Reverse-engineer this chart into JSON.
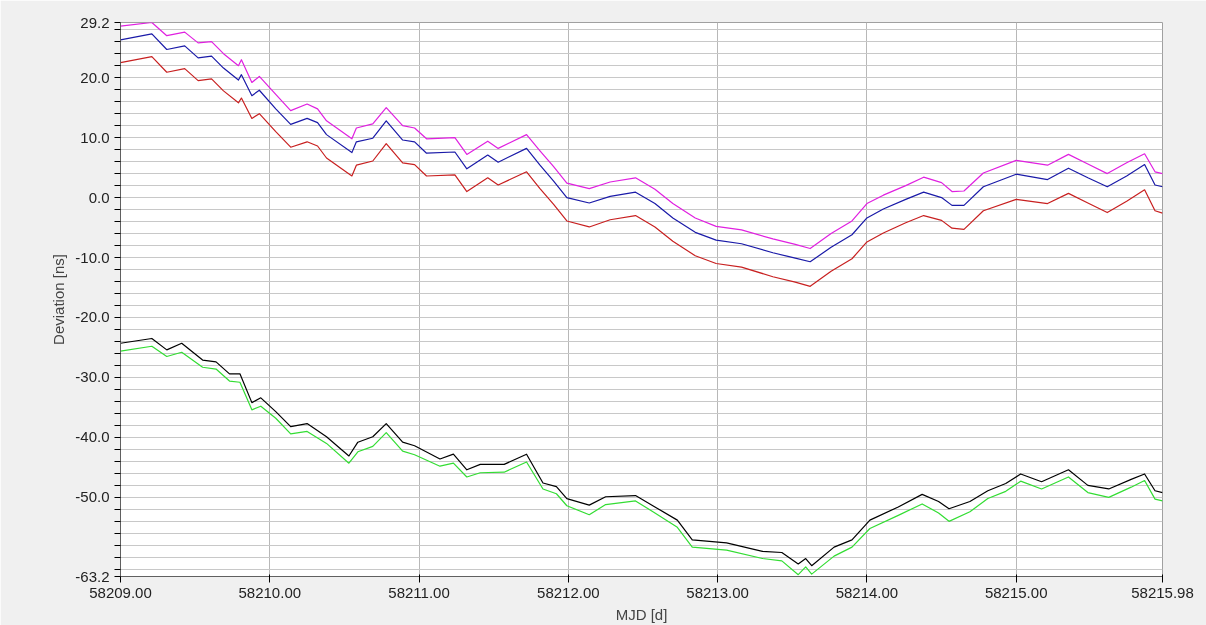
{
  "chart_data": {
    "type": "line",
    "xlabel": "MJD [d]",
    "ylabel": "Deviation [ns]",
    "xlim": [
      58209.0,
      58215.98
    ],
    "ylim": [
      -63.2,
      29.2
    ],
    "xticks": [
      {
        "value": 58209,
        "label": "58209.00"
      },
      {
        "value": 58210,
        "label": "58210.00"
      },
      {
        "value": 58211,
        "label": "58211.00"
      },
      {
        "value": 58212,
        "label": "58212.00"
      },
      {
        "value": 58213,
        "label": "58213.00"
      },
      {
        "value": 58214,
        "label": "58214.00"
      },
      {
        "value": 58215,
        "label": "58215.00"
      },
      {
        "value": 58215.98,
        "label": "58215.98"
      }
    ],
    "yticks": [
      29.2,
      {
        "value": 28,
        "label": null
      },
      {
        "value": 26,
        "label": null
      },
      {
        "value": 24,
        "label": null
      },
      {
        "value": 22,
        "label": null
      },
      {
        "value": 20,
        "label": "20.0"
      },
      {
        "value": 18,
        "label": null
      },
      {
        "value": 16,
        "label": null
      },
      {
        "value": 14,
        "label": null
      },
      {
        "value": 12,
        "label": null
      },
      {
        "value": 10,
        "label": "10.0"
      },
      {
        "value": 8,
        "label": null
      },
      {
        "value": 6,
        "label": null
      },
      {
        "value": 4,
        "label": null
      },
      {
        "value": 2,
        "label": null
      },
      {
        "value": 0,
        "label": "0.0"
      },
      {
        "value": -2,
        "label": null
      },
      {
        "value": -4,
        "label": null
      },
      {
        "value": -6,
        "label": null
      },
      {
        "value": -8,
        "label": null
      },
      {
        "value": -10,
        "label": "-10.0"
      },
      {
        "value": -12,
        "label": null
      },
      {
        "value": -14,
        "label": null
      },
      {
        "value": -16,
        "label": null
      },
      {
        "value": -18,
        "label": null
      },
      {
        "value": -20,
        "label": "-20.0"
      },
      {
        "value": -22,
        "label": null
      },
      {
        "value": -24,
        "label": null
      },
      {
        "value": -26,
        "label": null
      },
      {
        "value": -28,
        "label": null
      },
      {
        "value": -30,
        "label": "-30.0"
      },
      {
        "value": -32,
        "label": null
      },
      {
        "value": -34,
        "label": null
      },
      {
        "value": -36,
        "label": null
      },
      {
        "value": -38,
        "label": null
      },
      {
        "value": -40,
        "label": "-40.0"
      },
      {
        "value": -42,
        "label": null
      },
      {
        "value": -44,
        "label": null
      },
      {
        "value": -46,
        "label": null
      },
      {
        "value": -48,
        "label": null
      },
      {
        "value": -50,
        "label": "-50.0"
      },
      {
        "value": -52,
        "label": null
      },
      {
        "value": -54,
        "label": null
      },
      {
        "value": -56,
        "label": null
      },
      {
        "value": -58,
        "label": null
      },
      {
        "value": -60,
        "label": null
      },
      {
        "value": -62,
        "label": null
      },
      -63.2
    ],
    "grid": true,
    "marker": "none",
    "line_style": "solid",
    "series": [
      {
        "color": "#e020e0",
        "x": [
          58209.0,
          58209.21,
          58209.31,
          58209.43,
          58209.52,
          58209.61,
          58209.69,
          58209.79,
          58209.81,
          58209.88,
          58209.93,
          58210.04,
          58210.14,
          58210.25,
          58210.32,
          58210.38,
          58210.55,
          58210.58,
          58210.69,
          58210.78,
          58210.89,
          58210.97,
          58211.05,
          58211.24,
          58211.32,
          58211.46,
          58211.53,
          58211.72,
          58211.81,
          58211.9,
          58211.99,
          58212.14,
          58212.28,
          58212.45,
          58212.58,
          58212.7,
          58212.85,
          58212.99,
          58213.16,
          58213.37,
          58213.52,
          58213.62,
          58213.76,
          58213.9,
          58214.0,
          58214.11,
          58214.26,
          58214.38,
          58214.5,
          58214.57,
          58214.65,
          58214.78,
          58215.0,
          58215.21,
          58215.35,
          58215.48,
          58215.61,
          58215.74,
          58215.86,
          58215.93,
          58215.98
        ],
        "values": [
          28.6,
          29.2,
          27.0,
          27.6,
          25.8,
          26.0,
          24.0,
          22.0,
          23.0,
          19.2,
          20.2,
          17.2,
          14.5,
          15.6,
          14.8,
          12.8,
          9.8,
          11.6,
          12.3,
          15.0,
          12.0,
          11.6,
          9.8,
          10.0,
          7.2,
          9.4,
          8.2,
          10.5,
          7.8,
          5.2,
          2.4,
          1.5,
          2.6,
          3.3,
          1.4,
          -1.0,
          -3.4,
          -4.8,
          -5.4,
          -6.9,
          -7.8,
          -8.5,
          -6.0,
          -3.9,
          -1.0,
          0.4,
          2.0,
          3.4,
          2.5,
          1.0,
          1.1,
          4.1,
          6.2,
          5.4,
          7.2,
          5.6,
          4.0,
          5.8,
          7.3,
          4.3,
          4.0
        ]
      },
      {
        "color": "#1a1aa8",
        "x": [
          58209.0,
          58209.21,
          58209.31,
          58209.43,
          58209.52,
          58209.61,
          58209.69,
          58209.79,
          58209.81,
          58209.88,
          58209.93,
          58210.04,
          58210.14,
          58210.25,
          58210.32,
          58210.38,
          58210.55,
          58210.58,
          58210.69,
          58210.78,
          58210.89,
          58210.97,
          58211.05,
          58211.24,
          58211.32,
          58211.46,
          58211.53,
          58211.72,
          58211.81,
          58211.9,
          58211.99,
          58212.14,
          58212.28,
          58212.45,
          58212.58,
          58212.7,
          58212.85,
          58212.99,
          58213.16,
          58213.37,
          58213.52,
          58213.62,
          58213.76,
          58213.9,
          58214.0,
          58214.11,
          58214.26,
          58214.38,
          58214.5,
          58214.57,
          58214.65,
          58214.78,
          58215.0,
          58215.21,
          58215.35,
          58215.48,
          58215.61,
          58215.74,
          58215.86,
          58215.93,
          58215.98
        ],
        "values": [
          26.3,
          27.3,
          24.7,
          25.3,
          23.3,
          23.6,
          21.6,
          19.6,
          20.5,
          17.0,
          17.9,
          14.8,
          12.2,
          13.2,
          12.5,
          10.5,
          7.5,
          9.3,
          9.9,
          12.8,
          9.6,
          9.3,
          7.4,
          7.6,
          4.8,
          7.1,
          5.9,
          8.2,
          5.4,
          2.8,
          0.0,
          -0.9,
          0.2,
          0.9,
          -1.0,
          -3.4,
          -5.8,
          -7.1,
          -7.7,
          -9.2,
          -10.1,
          -10.7,
          -8.3,
          -6.2,
          -3.4,
          -1.9,
          -0.3,
          0.9,
          0.0,
          -1.3,
          -1.3,
          1.8,
          3.9,
          3.0,
          4.9,
          3.3,
          1.8,
          3.6,
          5.5,
          2.1,
          1.8
        ]
      },
      {
        "color": "#c82020",
        "x": [
          58209.0,
          58209.21,
          58209.31,
          58209.43,
          58209.52,
          58209.61,
          58209.69,
          58209.79,
          58209.81,
          58209.88,
          58209.93,
          58210.04,
          58210.14,
          58210.25,
          58210.32,
          58210.38,
          58210.55,
          58210.58,
          58210.69,
          58210.78,
          58210.89,
          58210.97,
          58211.05,
          58211.24,
          58211.32,
          58211.46,
          58211.53,
          58211.72,
          58211.81,
          58211.9,
          58211.99,
          58212.14,
          58212.28,
          58212.45,
          58212.58,
          58212.7,
          58212.85,
          58212.99,
          58213.16,
          58213.37,
          58213.52,
          58213.62,
          58213.76,
          58213.9,
          58214.0,
          58214.11,
          58214.26,
          58214.38,
          58214.5,
          58214.57,
          58214.65,
          58214.78,
          58215.0,
          58215.21,
          58215.35,
          58215.48,
          58215.61,
          58215.74,
          58215.86,
          58215.93,
          58215.98
        ],
        "values": [
          22.5,
          23.5,
          20.9,
          21.5,
          19.5,
          19.8,
          17.8,
          15.8,
          16.6,
          13.2,
          14.0,
          11.0,
          8.4,
          9.3,
          8.6,
          6.6,
          3.6,
          5.4,
          6.1,
          9.0,
          5.8,
          5.5,
          3.6,
          3.8,
          1.0,
          3.3,
          2.1,
          4.3,
          1.5,
          -1.1,
          -3.9,
          -4.9,
          -3.7,
          -3.0,
          -4.9,
          -7.3,
          -9.7,
          -11.0,
          -11.6,
          -13.2,
          -14.1,
          -14.8,
          -12.3,
          -10.2,
          -7.4,
          -5.9,
          -4.2,
          -3.0,
          -3.8,
          -5.1,
          -5.3,
          -2.2,
          -0.3,
          -1.0,
          0.7,
          -0.9,
          -2.5,
          -0.6,
          1.3,
          -2.2,
          -2.6
        ]
      },
      {
        "color": "#000000",
        "x": [
          58209.0,
          58209.21,
          58209.31,
          58209.41,
          58209.55,
          58209.64,
          58209.73,
          58209.8,
          58209.88,
          58209.94,
          58210.04,
          58210.14,
          58210.25,
          58210.38,
          58210.53,
          58210.59,
          58210.69,
          58210.78,
          58210.89,
          58210.97,
          58211.14,
          58211.23,
          58211.32,
          58211.41,
          58211.57,
          58211.72,
          58211.83,
          58211.92,
          58211.99,
          58212.14,
          58212.25,
          58212.45,
          58212.58,
          58212.73,
          58212.83,
          58213.06,
          58213.3,
          58213.43,
          58213.54,
          58213.59,
          58213.63,
          58213.78,
          58213.9,
          58214.02,
          58214.21,
          58214.37,
          58214.48,
          58214.55,
          58214.69,
          58214.81,
          58214.93,
          58215.03,
          58215.17,
          58215.35,
          58215.48,
          58215.62,
          58215.77,
          58215.86,
          58215.93,
          58215.98
        ],
        "values": [
          -24.3,
          -23.5,
          -25.4,
          -24.3,
          -27.1,
          -27.4,
          -29.4,
          -29.4,
          -34.2,
          -33.4,
          -35.7,
          -38.2,
          -37.7,
          -39.9,
          -43.1,
          -40.8,
          -39.9,
          -37.7,
          -40.8,
          -41.4,
          -43.6,
          -42.8,
          -45.4,
          -44.5,
          -44.5,
          -42.8,
          -47.6,
          -48.2,
          -50.2,
          -51.3,
          -49.9,
          -49.7,
          -51.6,
          -53.8,
          -57.1,
          -57.6,
          -59.0,
          -59.2,
          -61.1,
          -60.2,
          -61.4,
          -58.3,
          -57.1,
          -53.8,
          -51.6,
          -49.5,
          -50.7,
          -51.9,
          -50.7,
          -48.9,
          -47.7,
          -46.1,
          -47.4,
          -45.4,
          -48.0,
          -48.6,
          -47.0,
          -46.1,
          -48.9,
          -49.2
        ]
      },
      {
        "color": "#33dd33",
        "x": [
          58209.0,
          58209.21,
          58209.31,
          58209.41,
          58209.55,
          58209.64,
          58209.73,
          58209.8,
          58209.88,
          58209.94,
          58210.04,
          58210.14,
          58210.25,
          58210.38,
          58210.53,
          58210.59,
          58210.69,
          58210.78,
          58210.89,
          58210.97,
          58211.14,
          58211.23,
          58211.32,
          58211.41,
          58211.57,
          58211.72,
          58211.83,
          58211.92,
          58211.99,
          58212.14,
          58212.25,
          58212.45,
          58212.58,
          58212.73,
          58212.83,
          58213.06,
          58213.3,
          58213.43,
          58213.54,
          58213.59,
          58213.63,
          58213.78,
          58213.9,
          58214.02,
          58214.21,
          58214.37,
          58214.48,
          58214.55,
          58214.69,
          58214.81,
          58214.93,
          58215.03,
          58215.17,
          58215.35,
          58215.48,
          58215.62,
          58215.77,
          58215.86,
          58215.93,
          58215.98
        ],
        "values": [
          -25.6,
          -24.8,
          -26.5,
          -25.8,
          -28.3,
          -28.6,
          -30.6,
          -30.8,
          -35.4,
          -34.8,
          -36.8,
          -39.4,
          -39.0,
          -41.0,
          -44.3,
          -42.4,
          -41.5,
          -39.2,
          -42.3,
          -42.9,
          -44.8,
          -44.3,
          -46.6,
          -45.9,
          -45.8,
          -44.1,
          -48.6,
          -49.4,
          -51.4,
          -52.9,
          -51.2,
          -50.6,
          -52.6,
          -55.0,
          -58.3,
          -58.8,
          -60.2,
          -60.6,
          -62.9,
          -61.6,
          -62.8,
          -59.8,
          -58.3,
          -55.2,
          -53.0,
          -51.1,
          -52.6,
          -54.0,
          -52.4,
          -50.2,
          -49.0,
          -47.3,
          -48.6,
          -46.6,
          -49.2,
          -50.0,
          -48.3,
          -47.2,
          -50.3,
          -50.6
        ]
      }
    ]
  }
}
